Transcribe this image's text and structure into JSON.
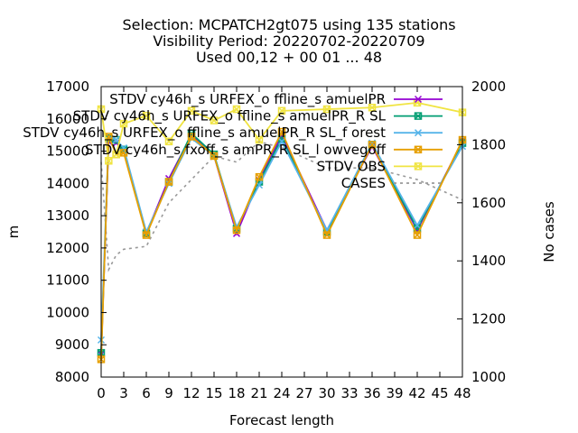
{
  "chart_data": {
    "type": "line",
    "title_lines": [
      "Selection: MCPATCH2gt075 using   135 stations",
      "Visibility   Period: 20220702-20220709",
      "Used  00,12 + 00 01 ... 48"
    ],
    "xlabel": "Forecast length",
    "ylabel": "m",
    "y2label": "No cases",
    "xlim": [
      0,
      48
    ],
    "ylim": [
      8000,
      17000
    ],
    "y2lim": [
      1000,
      2000
    ],
    "x_ticks": [
      0,
      3,
      6,
      9,
      12,
      15,
      18,
      21,
      24,
      27,
      30,
      33,
      36,
      39,
      42,
      45,
      48
    ],
    "y_ticks": [
      8000,
      9000,
      10000,
      11000,
      12000,
      13000,
      14000,
      15000,
      16000,
      17000
    ],
    "y2_ticks": [
      1000,
      1200,
      1400,
      1600,
      1800,
      2000
    ],
    "grid": false,
    "legend_position": "top-right",
    "x": [
      0,
      1,
      2,
      3,
      6,
      9,
      12,
      15,
      18,
      21,
      24,
      30,
      36,
      42,
      48
    ],
    "series": [
      {
        "name": "STDV cy46h_s URFEX_o ffline_s amuelPR",
        "color": "#9400d3",
        "marker": "x",
        "axis": "y",
        "values": [
          8700,
          15300,
          15250,
          15050,
          12450,
          14150,
          15500,
          14850,
          12450,
          14100,
          15500,
          12550,
          15150,
          12550,
          15300
        ]
      },
      {
        "name": "STDV cy46h_s URFEX_o ffline_s amuelPR_R SL",
        "color": "#009e73",
        "marker": "x-box",
        "axis": "y",
        "values": [
          8750,
          15400,
          15350,
          15050,
          12450,
          14050,
          15550,
          14900,
          12600,
          14050,
          15400,
          12500,
          15200,
          12600,
          15250
        ]
      },
      {
        "name": "STDV cy46h_s URFEX_o ffline_s amuelPR_R SL_f orest",
        "color": "#56b4e9",
        "marker": "x",
        "axis": "y",
        "values": [
          9150,
          15450,
          15350,
          15100,
          12500,
          14000,
          15400,
          14850,
          12650,
          13950,
          15300,
          12550,
          15250,
          12700,
          15150
        ]
      },
      {
        "name": "STDV cy46h_s fxoff_s amPR_R SL_l owvegoff",
        "color": "#e69f00",
        "marker": "x-box",
        "axis": "y",
        "values": [
          8550,
          15450,
          14900,
          14950,
          12400,
          14050,
          15450,
          14850,
          12550,
          14200,
          15600,
          12400,
          15200,
          12400,
          15350
        ]
      },
      {
        "name": "STDV OBS",
        "color": "#f0e442",
        "marker": "x-box",
        "axis": "y",
        "values": [
          16300,
          14700,
          14900,
          15850,
          16100,
          15300,
          16250,
          15950,
          16300,
          15350,
          16250,
          16300,
          16350,
          16500,
          16200
        ]
      },
      {
        "name": "CASES",
        "color": "#999999",
        "marker": "none",
        "dashed": true,
        "axis": "y2",
        "values": [
          1740,
          1370,
          1420,
          1440,
          1450,
          1600,
          1680,
          1760,
          1740,
          1810,
          1790,
          1720,
          1720,
          1680,
          1610
        ]
      }
    ]
  }
}
